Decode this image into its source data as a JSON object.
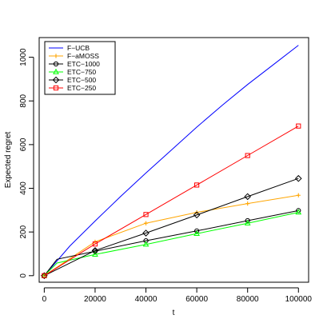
{
  "chart_data": {
    "type": "line",
    "title": "",
    "xlabel": "t",
    "ylabel": "Expected regret",
    "xlim": [
      -2000,
      104000
    ],
    "ylim": [
      -30,
      1090
    ],
    "x_ticks": [
      0,
      20000,
      40000,
      60000,
      80000,
      100000
    ],
    "x_tick_labels": [
      "0",
      "20000",
      "40000",
      "60000",
      "80000",
      "100000"
    ],
    "y_ticks": [
      0,
      200,
      400,
      600,
      800,
      1000
    ],
    "y_tick_labels": [
      "0",
      "200",
      "400",
      "600",
      "800",
      "1000"
    ],
    "grid": false,
    "legend_position": "top-left",
    "series": [
      {
        "name": "F−UCB",
        "color": "#0000ff",
        "marker": "none",
        "x": [
          0,
          10000,
          20000,
          30000,
          40000,
          50000,
          60000,
          70000,
          80000,
          90000,
          100000
        ],
        "y": [
          0,
          135,
          250,
          362,
          470,
          575,
          680,
          780,
          875,
          965,
          1055
        ]
      },
      {
        "name": "F−aMOSS",
        "color": "#ffa500",
        "marker": "plus",
        "x": [
          0,
          20000,
          40000,
          60000,
          80000,
          100000
        ],
        "y": [
          0,
          155,
          240,
          290,
          330,
          368
        ]
      },
      {
        "name": "ETC−1000",
        "color": "#000000",
        "marker": "circle",
        "x": [
          0,
          5000,
          20000,
          40000,
          60000,
          80000,
          100000
        ],
        "y": [
          0,
          75,
          112,
          160,
          205,
          252,
          298
        ]
      },
      {
        "name": "ETC−750",
        "color": "#00ff00",
        "marker": "triangle",
        "x": [
          0,
          5000,
          20000,
          40000,
          60000,
          80000,
          100000
        ],
        "y": [
          0,
          58,
          97,
          143,
          192,
          240,
          290
        ]
      },
      {
        "name": "ETC−500",
        "color": "#000000",
        "marker": "diamond",
        "x": [
          0,
          20000,
          40000,
          60000,
          80000,
          100000
        ],
        "y": [
          0,
          115,
          195,
          278,
          362,
          445
        ]
      },
      {
        "name": "ETC−250",
        "color": "#ff0000",
        "marker": "square",
        "x": [
          0,
          20000,
          40000,
          60000,
          80000,
          100000
        ],
        "y": [
          0,
          145,
          280,
          415,
          550,
          685
        ]
      }
    ]
  }
}
